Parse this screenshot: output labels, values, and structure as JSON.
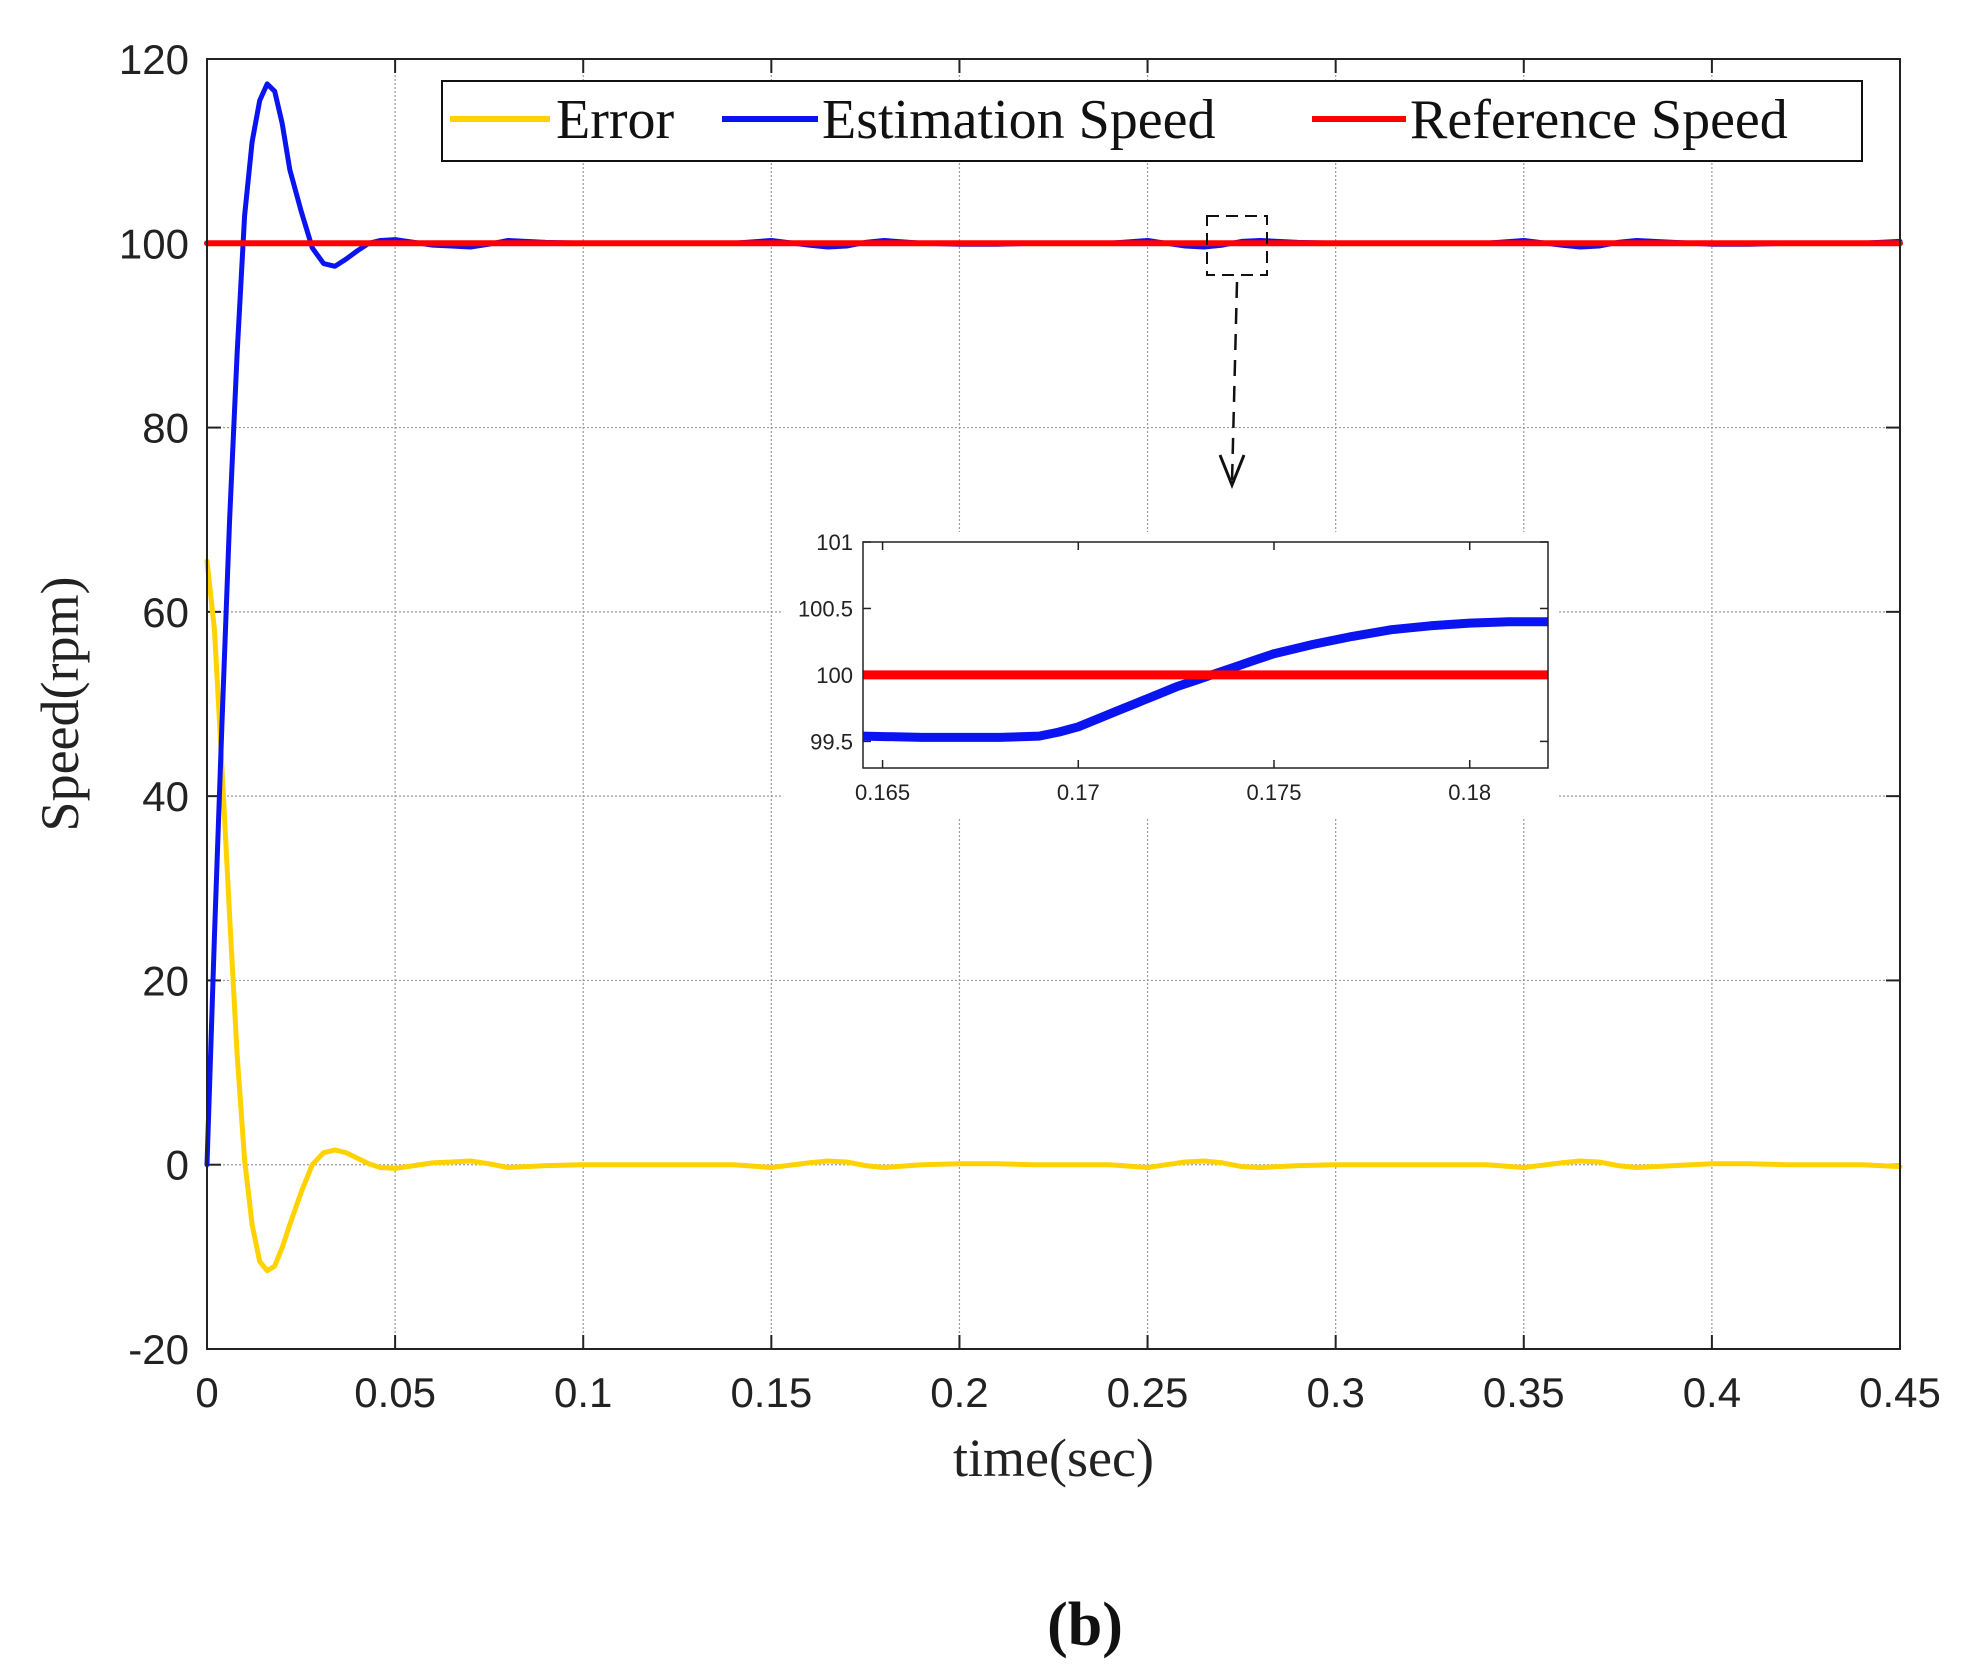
{
  "caption": "(b)",
  "chart_data": [
    {
      "type": "line",
      "title": "",
      "xlabel": "time(sec)",
      "ylabel": "Speed(rpm)",
      "xlim": [
        0,
        0.45
      ],
      "ylim": [
        -20,
        120
      ],
      "xticks": [
        0,
        0.05,
        0.1,
        0.15,
        0.2,
        0.25,
        0.3,
        0.35,
        0.4,
        0.45
      ],
      "xtick_labels": [
        "0",
        "0.05",
        "0.1",
        "0.15",
        "0.2",
        "0.25",
        "0.3",
        "0.35",
        "0.4",
        "0.45"
      ],
      "yticks": [
        -20,
        0,
        20,
        40,
        60,
        80,
        100,
        120
      ],
      "ytick_labels": [
        "-20",
        "0",
        "20",
        "40",
        "60",
        "80",
        "100",
        "120"
      ],
      "grid": true,
      "legend_position": "top-right",
      "series": [
        {
          "name": "Error",
          "color": "#FFD200",
          "x": [
            0,
            0.002,
            0.004,
            0.006,
            0.008,
            0.01,
            0.012,
            0.014,
            0.016,
            0.018,
            0.02,
            0.022,
            0.025,
            0.028,
            0.031,
            0.034,
            0.037,
            0.04,
            0.043,
            0.046,
            0.05,
            0.055,
            0.06,
            0.065,
            0.07,
            0.075,
            0.08,
            0.09,
            0.1,
            0.11,
            0.12,
            0.13,
            0.14,
            0.15,
            0.16,
            0.165,
            0.17,
            0.175,
            0.18,
            0.19,
            0.2,
            0.21,
            0.22,
            0.23,
            0.24,
            0.25,
            0.255,
            0.26,
            0.265,
            0.27,
            0.275,
            0.28,
            0.29,
            0.3,
            0.31,
            0.32,
            0.33,
            0.34,
            0.35,
            0.36,
            0.365,
            0.37,
            0.375,
            0.38,
            0.39,
            0.4,
            0.41,
            0.42,
            0.43,
            0.44,
            0.45
          ],
          "values": [
            65.5,
            58,
            43,
            27,
            12,
            0.5,
            -6.5,
            -10.5,
            -11.5,
            -11,
            -9,
            -6.5,
            -3,
            0,
            1.3,
            1.6,
            1.3,
            0.7,
            0.1,
            -0.3,
            -0.4,
            -0.1,
            0.2,
            0.3,
            0.4,
            0.1,
            -0.3,
            -0.1,
            0,
            0,
            0,
            0,
            0,
            -0.3,
            0.2,
            0.4,
            0.3,
            -0.1,
            -0.3,
            0,
            0.1,
            0.1,
            0,
            0,
            0,
            -0.3,
            0,
            0.3,
            0.4,
            0.2,
            -0.2,
            -0.3,
            -0.1,
            0,
            0,
            0,
            0,
            0,
            -0.3,
            0.2,
            0.4,
            0.3,
            -0.1,
            -0.3,
            -0.1,
            0.1,
            0.1,
            0,
            0,
            0,
            -0.2
          ]
        },
        {
          "name": "Estimation Speed",
          "color": "#0A14F0",
          "x": [
            0,
            0.002,
            0.004,
            0.006,
            0.008,
            0.01,
            0.012,
            0.014,
            0.016,
            0.018,
            0.02,
            0.022,
            0.025,
            0.028,
            0.031,
            0.034,
            0.037,
            0.04,
            0.043,
            0.046,
            0.05,
            0.055,
            0.06,
            0.065,
            0.07,
            0.075,
            0.08,
            0.09,
            0.1,
            0.11,
            0.12,
            0.13,
            0.14,
            0.15,
            0.16,
            0.165,
            0.17,
            0.175,
            0.18,
            0.19,
            0.2,
            0.21,
            0.22,
            0.23,
            0.24,
            0.25,
            0.255,
            0.26,
            0.265,
            0.27,
            0.275,
            0.28,
            0.29,
            0.3,
            0.31,
            0.32,
            0.33,
            0.34,
            0.35,
            0.36,
            0.365,
            0.37,
            0.375,
            0.38,
            0.39,
            0.4,
            0.41,
            0.42,
            0.43,
            0.44,
            0.45
          ],
          "values": [
            0,
            25,
            48,
            70,
            88,
            103,
            111,
            115.5,
            117.3,
            116.5,
            113,
            108,
            103.5,
            99.5,
            97.8,
            97.5,
            98.3,
            99.2,
            100,
            100.3,
            100.4,
            100.1,
            99.8,
            99.7,
            99.6,
            99.9,
            100.3,
            100.1,
            100,
            100,
            100,
            100,
            100,
            100.3,
            99.8,
            99.6,
            99.7,
            100.1,
            100.3,
            100,
            99.9,
            99.9,
            100,
            100,
            100,
            100.3,
            100,
            99.7,
            99.6,
            99.8,
            100.2,
            100.3,
            100.1,
            100,
            100,
            100,
            100,
            100,
            100.3,
            99.8,
            99.6,
            99.7,
            100.1,
            100.3,
            100.1,
            99.9,
            99.9,
            100,
            100,
            100,
            100.2
          ]
        },
        {
          "name": "Reference Speed",
          "color": "#FF0000",
          "x": [
            0,
            0.45
          ],
          "values": [
            100,
            100
          ]
        }
      ]
    },
    {
      "type": "line",
      "title": "",
      "xlabel": "",
      "ylabel": "",
      "xlim": [
        0.1645,
        0.182
      ],
      "ylim": [
        99.3,
        101
      ],
      "xticks": [
        0.165,
        0.17,
        0.175,
        0.18
      ],
      "xtick_labels": [
        "0.165",
        "0.17",
        "0.175",
        "0.18"
      ],
      "yticks": [
        99.5,
        100,
        100.5,
        101
      ],
      "ytick_labels": [
        "99.5",
        "100",
        "100.5",
        "101"
      ],
      "grid": false,
      "series": [
        {
          "name": "Estimation Speed",
          "color": "#0A14F0",
          "x": [
            0.1645,
            0.166,
            0.168,
            0.169,
            0.1695,
            0.17,
            0.1705,
            0.171,
            0.1715,
            0.172,
            0.1725,
            0.173,
            0.1735,
            0.174,
            0.1745,
            0.175,
            0.176,
            0.177,
            0.178,
            0.179,
            0.18,
            0.181,
            0.182
          ],
          "values": [
            99.54,
            99.53,
            99.53,
            99.54,
            99.57,
            99.61,
            99.67,
            99.73,
            99.79,
            99.85,
            99.91,
            99.96,
            100.01,
            100.06,
            100.11,
            100.16,
            100.23,
            100.29,
            100.34,
            100.37,
            100.39,
            100.4,
            100.4
          ]
        },
        {
          "name": "Reference Speed",
          "color": "#FF0000",
          "x": [
            0.1645,
            0.182
          ],
          "values": [
            100,
            100
          ]
        }
      ]
    }
  ]
}
